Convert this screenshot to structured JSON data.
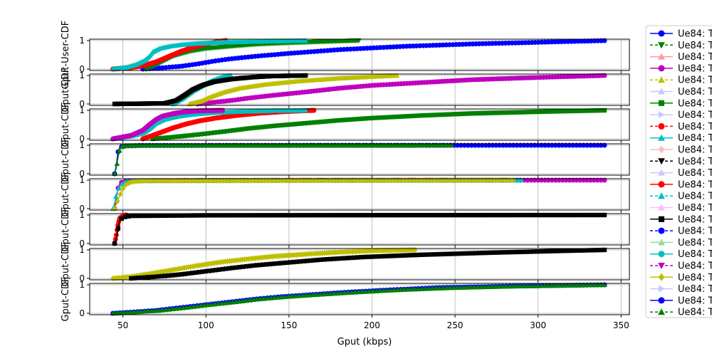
{
  "chart_data": {
    "type": "line",
    "xlabel": "Gput (kbps)",
    "ylabel_lines": [
      "Gput-User-CDF",
      "Gput-CDF",
      "Gput-CDF",
      "Gput-CDF",
      "Gput-CDF",
      "Gput-CDF",
      "Gput-CDF",
      "Gput-CDF"
    ],
    "xlim": [
      30,
      355
    ],
    "ylim": [
      -0.05,
      1.05
    ],
    "xticks": [
      50,
      100,
      150,
      200,
      250,
      300,
      350
    ],
    "yticks": [
      0,
      1
    ],
    "grid": true,
    "legend_position": "right, clipped",
    "legend_entries": [
      {
        "label": "Ue84: T",
        "color": "#0000ff",
        "marker": "circle",
        "dashed": false
      },
      {
        "label": "Ue84: T",
        "color": "#008000",
        "marker": "triangle-down",
        "dashed": true
      },
      {
        "label": "Ue84: T",
        "color": "#ff9999",
        "marker": "triangle-up",
        "dashed": false
      },
      {
        "label": "Ue84: T",
        "color": "#bf00bf",
        "marker": "circle",
        "dashed": false
      },
      {
        "label": "Ue84: T",
        "color": "#bfbf00",
        "marker": "triangle-up",
        "dashed": true
      },
      {
        "label": "Ue84: T",
        "color": "#c8c8ff",
        "marker": "triangle-up",
        "dashed": false
      },
      {
        "label": "Ue84: T",
        "color": "#008000",
        "marker": "square",
        "dashed": false
      },
      {
        "label": "Ue84: T",
        "color": "#c8c8ff",
        "marker": "triangle-right",
        "dashed": false
      },
      {
        "label": "Ue84: T",
        "color": "#ff0000",
        "marker": "circle",
        "dashed": true
      },
      {
        "label": "Ue84: T",
        "color": "#00bfbf",
        "marker": "triangle-up",
        "dashed": false
      },
      {
        "label": "Ue84: T",
        "color": "#ffbbbb",
        "marker": "diamond",
        "dashed": false
      },
      {
        "label": "Ue84: T",
        "color": "#000000",
        "marker": "triangle-down",
        "dashed": true
      },
      {
        "label": "Ue84: T",
        "color": "#c8c8ff",
        "marker": "triangle-up",
        "dashed": false
      },
      {
        "label": "Ue84: T",
        "color": "#ff0000",
        "marker": "circle",
        "dashed": false
      },
      {
        "label": "Ue84: T",
        "color": "#00bfbf",
        "marker": "triangle-up",
        "dashed": true
      },
      {
        "label": "Ue84: T",
        "color": "#ffbbff",
        "marker": "triangle-up",
        "dashed": false
      },
      {
        "label": "Ue84: T",
        "color": "#000000",
        "marker": "square",
        "dashed": false
      },
      {
        "label": "Ue84: T",
        "color": "#0000ff",
        "marker": "circle",
        "dashed": true
      },
      {
        "label": "Ue84: T",
        "color": "#99dd99",
        "marker": "triangle-up",
        "dashed": false
      },
      {
        "label": "Ue84: T",
        "color": "#00bfbf",
        "marker": "circle",
        "dashed": false
      },
      {
        "label": "Ue84: T",
        "color": "#bf00bf",
        "marker": "triangle-down",
        "dashed": true
      },
      {
        "label": "Ue84: T",
        "color": "#bfbf00",
        "marker": "diamond",
        "dashed": false
      },
      {
        "label": "Ue84: T",
        "color": "#c8c8ff",
        "marker": "triangle-right",
        "dashed": false
      },
      {
        "label": "Ue84: T",
        "color": "#0000ff",
        "marker": "circle",
        "dashed": false
      },
      {
        "label": "Ue84: T",
        "color": "#008000",
        "marker": "triangle-up",
        "dashed": true
      }
    ],
    "subplots": [
      {
        "series": [
          {
            "color": "#0000ff",
            "marker": "circle",
            "x": [
              62,
              68,
              75,
              85,
              95,
              105,
              115,
              130,
              150,
              180,
              220,
              260,
              300,
              340
            ],
            "y": [
              0,
              0.02,
              0.05,
              0.1,
              0.18,
              0.28,
              0.36,
              0.45,
              0.55,
              0.68,
              0.8,
              0.88,
              0.94,
              1.0
            ]
          },
          {
            "color": "#008000",
            "marker": "triangle-down",
            "x": [
              64,
              70,
              75,
              80,
              90,
              100,
              115,
              130,
              150,
              170,
              192
            ],
            "y": [
              0,
              0.15,
              0.3,
              0.45,
              0.62,
              0.72,
              0.8,
              0.87,
              0.92,
              0.96,
              1.0
            ]
          },
          {
            "color": "#ff0000",
            "marker": "circle",
            "x": [
              44,
              55,
              62,
              70,
              78,
              85,
              92,
              100,
              107,
              112
            ],
            "y": [
              0,
              0.05,
              0.12,
              0.25,
              0.45,
              0.62,
              0.76,
              0.88,
              0.96,
              1.0
            ]
          },
          {
            "color": "#00bfbf",
            "marker": "triangle-up",
            "x": [
              44,
              52,
              58,
              63,
              66,
              68,
              72,
              78,
              86,
              95,
              110,
              130,
              150,
              160
            ],
            "y": [
              0,
              0.06,
              0.16,
              0.3,
              0.45,
              0.6,
              0.72,
              0.8,
              0.86,
              0.9,
              0.94,
              0.97,
              0.99,
              1.0
            ]
          }
        ]
      },
      {
        "series": [
          {
            "color": "#bf00bf",
            "marker": "circle",
            "x": [
              95,
              105,
              115,
              125,
              140,
              160,
              180,
              200,
              230,
              260,
              300,
              340
            ],
            "y": [
              0,
              0.06,
              0.12,
              0.2,
              0.3,
              0.42,
              0.55,
              0.65,
              0.75,
              0.85,
              0.93,
              1.0
            ]
          },
          {
            "color": "#bfbf00",
            "marker": "triangle-up",
            "x": [
              90,
              97,
              103,
              110,
              120,
              135,
              155,
              180,
              200,
              215
            ],
            "y": [
              0,
              0.1,
              0.25,
              0.4,
              0.55,
              0.68,
              0.8,
              0.9,
              0.96,
              1.0
            ]
          },
          {
            "color": "#00bfbf",
            "marker": "triangle-up",
            "x": [
              80,
              86,
              92,
              98,
              104,
              110,
              115
            ],
            "y": [
              0,
              0.2,
              0.45,
              0.65,
              0.82,
              0.94,
              1.0
            ]
          },
          {
            "color": "#000000",
            "marker": "square",
            "x": [
              45,
              75,
              82,
              87,
              92,
              98,
              105,
              115,
              128,
              140,
              160
            ],
            "y": [
              0,
              0.02,
              0.12,
              0.3,
              0.5,
              0.66,
              0.78,
              0.87,
              0.94,
              0.98,
              1.0
            ]
          }
        ]
      },
      {
        "series": [
          {
            "color": "#008000",
            "marker": "square",
            "x": [
              68,
              80,
              95,
              110,
              125,
              140,
              160,
              180,
              200,
              230,
              260,
              300,
              340
            ],
            "y": [
              0,
              0.06,
              0.15,
              0.25,
              0.36,
              0.45,
              0.55,
              0.65,
              0.73,
              0.82,
              0.89,
              0.95,
              1.0
            ]
          },
          {
            "color": "#ff0000",
            "marker": "circle",
            "x": [
              62,
              68,
              74,
              80,
              88,
              96,
              106,
              118,
              132,
              148,
              165
            ],
            "y": [
              0,
              0.12,
              0.25,
              0.38,
              0.52,
              0.63,
              0.73,
              0.82,
              0.9,
              0.96,
              1.0
            ]
          },
          {
            "color": "#00bfbf",
            "marker": "triangle-up",
            "x": [
              44,
              55,
              62,
              66,
              70,
              75,
              82,
              92,
              105,
              120,
              140,
              160
            ],
            "y": [
              0,
              0.1,
              0.2,
              0.35,
              0.55,
              0.68,
              0.78,
              0.86,
              0.92,
              0.96,
              0.99,
              1.0
            ]
          },
          {
            "color": "#bf00bf",
            "marker": "circle",
            "x": [
              44,
              55,
              62,
              66,
              70,
              74,
              80,
              86,
              95,
              110
            ],
            "y": [
              0,
              0.12,
              0.3,
              0.5,
              0.68,
              0.8,
              0.88,
              0.94,
              0.98,
              1.0
            ]
          }
        ]
      },
      {
        "series": [
          {
            "color": "#0000ff",
            "marker": "circle",
            "x": [
              45,
              46,
              47,
              48,
              50,
              60,
              150,
              250,
              340
            ],
            "y": [
              0,
              0.3,
              0.75,
              0.92,
              0.97,
              0.99,
              0.995,
              0.998,
              1.0
            ]
          },
          {
            "color": "#008000",
            "marker": "triangle-up",
            "x": [
              45,
              46,
              47,
              48,
              49,
              51,
              60,
              150,
              248
            ],
            "y": [
              0,
              0.2,
              0.55,
              0.85,
              0.94,
              0.98,
              0.99,
              0.996,
              1.0
            ]
          }
        ]
      },
      {
        "series": [
          {
            "color": "#bf00bf",
            "marker": "circle",
            "x": [
              45,
              46,
              47,
              48,
              50,
              55,
              100,
              200,
              340
            ],
            "y": [
              0,
              0.35,
              0.7,
              0.88,
              0.95,
              0.98,
              0.99,
              0.995,
              1.0
            ]
          },
          {
            "color": "#00bfbf",
            "marker": "triangle-up",
            "x": [
              44,
              45,
              46,
              48,
              50,
              53,
              60,
              150,
              290
            ],
            "y": [
              0,
              0.2,
              0.5,
              0.78,
              0.9,
              0.96,
              0.98,
              0.995,
              1.0
            ]
          },
          {
            "color": "#bfbf00",
            "marker": "diamond",
            "x": [
              45,
              46,
              48,
              50,
              52,
              55,
              60,
              150,
              285
            ],
            "y": [
              0,
              0.15,
              0.45,
              0.7,
              0.85,
              0.93,
              0.97,
              0.99,
              1.0
            ]
          }
        ]
      },
      {
        "series": [
          {
            "color": "#ff0000",
            "marker": "circle",
            "x": [
              45,
              46,
              47,
              48,
              50,
              52
            ],
            "y": [
              0,
              0.3,
              0.65,
              0.88,
              0.97,
              1.0
            ]
          },
          {
            "color": "#000000",
            "marker": "square",
            "x": [
              45,
              46,
              47,
              48,
              50,
              55,
              100,
              200,
              340
            ],
            "y": [
              0,
              0.15,
              0.5,
              0.8,
              0.92,
              0.97,
              0.99,
              0.995,
              1.0
            ]
          }
        ]
      },
      {
        "series": [
          {
            "color": "#bfbf00",
            "marker": "diamond",
            "x": [
              44,
              55,
              65,
              80,
              95,
              110,
              125,
              140,
              160,
              180,
              200,
              226
            ],
            "y": [
              0,
              0.06,
              0.15,
              0.3,
              0.45,
              0.58,
              0.68,
              0.77,
              0.85,
              0.92,
              0.97,
              1.0
            ]
          },
          {
            "color": "#000000",
            "marker": "square",
            "x": [
              55,
              70,
              85,
              100,
              115,
              130,
              150,
              170,
              195,
              230,
              270,
              310,
              340
            ],
            "y": [
              0,
              0.06,
              0.14,
              0.25,
              0.36,
              0.46,
              0.56,
              0.66,
              0.75,
              0.83,
              0.9,
              0.96,
              1.0
            ]
          }
        ]
      },
      {
        "series": [
          {
            "color": "#0000ff",
            "marker": "circle",
            "x": [
              44,
              55,
              70,
              85,
              100,
              115,
              130,
              145,
              165,
              185,
              210,
              240,
              280,
              340
            ],
            "y": [
              0,
              0.04,
              0.1,
              0.2,
              0.3,
              0.4,
              0.5,
              0.58,
              0.66,
              0.74,
              0.82,
              0.9,
              0.95,
              1.0
            ]
          },
          {
            "color": "#008000",
            "marker": "triangle-up",
            "x": [
              44,
              56,
              72,
              88,
              102,
              118,
              132,
              148,
              168,
              190,
              215,
              245,
              285,
              340
            ],
            "y": [
              0,
              0.04,
              0.1,
              0.2,
              0.3,
              0.4,
              0.5,
              0.58,
              0.66,
              0.74,
              0.82,
              0.89,
              0.95,
              1.0
            ]
          }
        ]
      }
    ]
  }
}
